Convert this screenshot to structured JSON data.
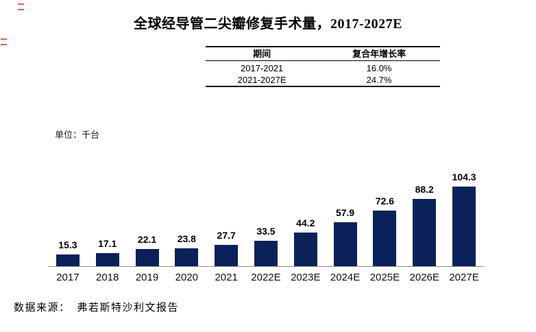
{
  "title": "全球经导管二尖瓣修复手术量，2017-2027E",
  "cagr_table": {
    "headers": [
      "期间",
      "复合年增长率"
    ],
    "rows": [
      [
        "2017-2021",
        "16.0%"
      ],
      [
        "2021-2027E",
        "24.7%"
      ]
    ]
  },
  "unit_label": "单位：千台",
  "source": {
    "label": "数据来源：",
    "text": "弗若斯特沙利文报告"
  },
  "chart_data": {
    "type": "bar",
    "categories": [
      "2017",
      "2018",
      "2019",
      "2020",
      "2021",
      "2022E",
      "2023E",
      "2024E",
      "2025E",
      "2026E",
      "2027E"
    ],
    "values": [
      15.3,
      17.1,
      22.1,
      23.8,
      27.7,
      33.5,
      44.2,
      57.9,
      72.6,
      88.2,
      104.3
    ],
    "title": "全球经导管二尖瓣修复手术量，2017-2027E",
    "xlabel": "",
    "ylabel": "千台",
    "ylim": [
      0,
      110
    ],
    "grid": false,
    "legend": false,
    "data_labels": true,
    "bar_color": "#0B2159",
    "axis_line_color": "#8c8c8c"
  },
  "colors": {
    "bar": "#0B2159",
    "axis_line": "#8c8c8c",
    "artifact_red": "#cf4537"
  }
}
